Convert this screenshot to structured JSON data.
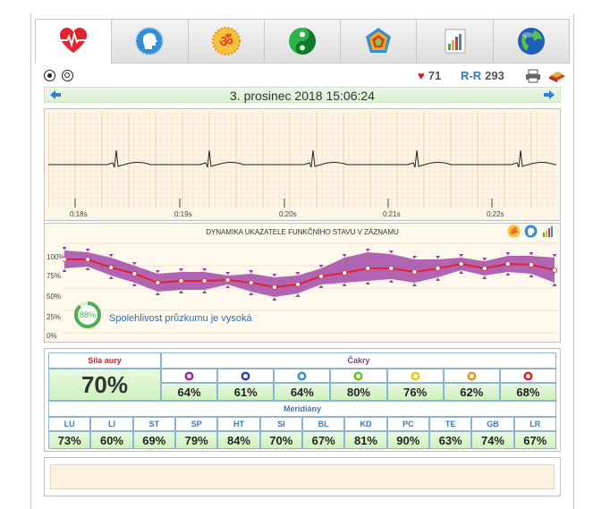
{
  "tabs": [
    {
      "name": "heart-icon",
      "color": "#d81b2a"
    },
    {
      "name": "head-profile-icon",
      "color": "#2f8fd8"
    },
    {
      "name": "om-icon",
      "color": "#e86a10"
    },
    {
      "name": "yin-yang-icon",
      "color": "#2db34a"
    },
    {
      "name": "pentagon-chart-icon",
      "color": "#7c9c2e"
    },
    {
      "name": "bar-chart-icon",
      "color": "#d83a2a"
    },
    {
      "name": "globe-icon",
      "color": "#1e5fb8"
    }
  ],
  "toolbar": {
    "pulse": "71",
    "rr_label": "R-R",
    "rr_value": "293"
  },
  "datebar": {
    "date": "3. prosinec 2018 15:06:24"
  },
  "ecg": {
    "ticks": [
      "0:18s",
      "0:19s",
      "0:20s",
      "0:21s",
      "0:22s"
    ]
  },
  "dynamics": {
    "title": "DYNAMIKA UKAZATELE FUNKČNÍHO STAVU V ZÁZNAMU",
    "y_labels": [
      "100%",
      "75%",
      "50%",
      "25%",
      "0%"
    ],
    "reliability_percent": "88%",
    "reliability_text": "Spolehlivost průzkumu je vysoká",
    "series": [
      82,
      82,
      73,
      66,
      56,
      58,
      58,
      59,
      56,
      51,
      54,
      63,
      67,
      72,
      72,
      68,
      72,
      77,
      72,
      77,
      76,
      70
    ],
    "band_hi": [
      92,
      90,
      84,
      75,
      66,
      68,
      68,
      64,
      66,
      62,
      64,
      72,
      84,
      90,
      88,
      82,
      82,
      84,
      80,
      86,
      86,
      84
    ],
    "band_lo": [
      72,
      74,
      64,
      56,
      46,
      48,
      48,
      54,
      46,
      40,
      44,
      54,
      56,
      58,
      60,
      56,
      62,
      70,
      64,
      68,
      66,
      56
    ]
  },
  "table": {
    "aura_label": "Síla aury",
    "aura_value": "70%",
    "chakra_label": "Čakry",
    "chakras": [
      {
        "value": "64%",
        "color": "#a020a0"
      },
      {
        "value": "61%",
        "color": "#2f3fb0"
      },
      {
        "value": "64%",
        "color": "#2f8fd8"
      },
      {
        "value": "80%",
        "color": "#6bbf1e"
      },
      {
        "value": "76%",
        "color": "#e8c810"
      },
      {
        "value": "62%",
        "color": "#f08a1a"
      },
      {
        "value": "68%",
        "color": "#e02020"
      }
    ],
    "meridian_label": "Meridiány",
    "meridians": [
      {
        "label": "LU",
        "value": "73%"
      },
      {
        "label": "LI",
        "value": "60%"
      },
      {
        "label": "ST",
        "value": "69%"
      },
      {
        "label": "SP",
        "value": "79%"
      },
      {
        "label": "HT",
        "value": "84%"
      },
      {
        "label": "SI",
        "value": "70%"
      },
      {
        "label": "BL",
        "value": "67%"
      },
      {
        "label": "KD",
        "value": "81%"
      },
      {
        "label": "PC",
        "value": "90%"
      },
      {
        "label": "TE",
        "value": "63%"
      },
      {
        "label": "GB",
        "value": "74%"
      },
      {
        "label": "LR",
        "value": "67%"
      }
    ]
  }
}
